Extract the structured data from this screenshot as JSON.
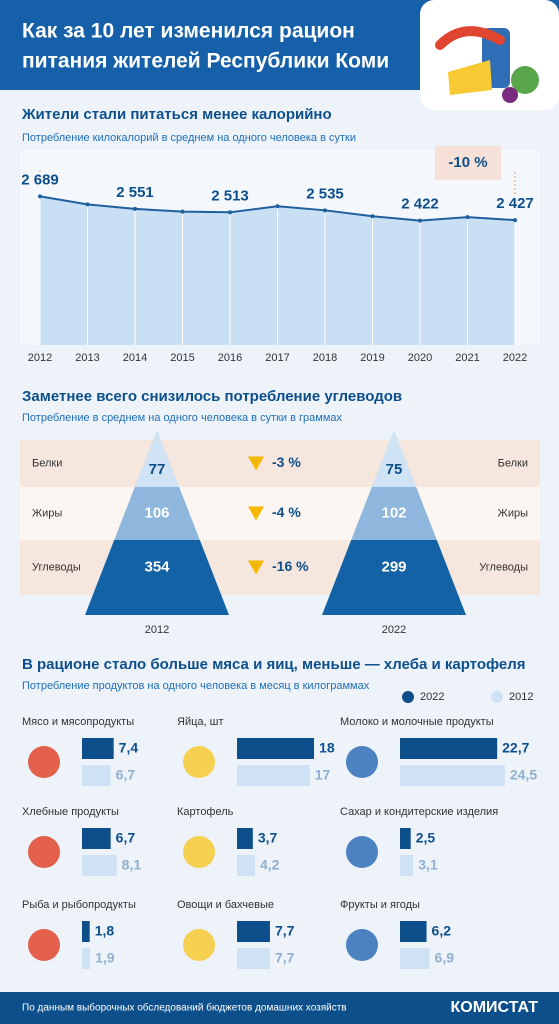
{
  "header": {
    "title_line1": "Как за 10 лет изменился рацион",
    "title_line2": "питания жителей Республики Коми"
  },
  "chart_data": [
    {
      "type": "line",
      "title": "Жители стали питаться менее калорийно",
      "subtitle": "Потребление килокалорий в среднем на одного человека в сутки",
      "annotation": "-10 %",
      "categories": [
        "2012",
        "2013",
        "2014",
        "2015",
        "2016",
        "2017",
        "2018",
        "2019",
        "2020",
        "2021",
        "2022"
      ],
      "values": [
        2689,
        2600,
        2551,
        2520,
        2513,
        2580,
        2535,
        2470,
        2422,
        2460,
        2427
      ],
      "value_labels": [
        "2 689",
        null,
        "2 551",
        null,
        "2 513",
        null,
        "2 535",
        null,
        "2 422",
        null,
        "2 427"
      ],
      "ylim": [
        1050,
        3200
      ],
      "color": "#1f5f9e"
    },
    {
      "type": "pyramid",
      "title": "Заметнее всего снизилось потребление углеводов",
      "subtitle": "Потребление  в среднем на одного человека в сутки в граммах",
      "categories": [
        "Белки",
        "Жиры",
        "Углеводы"
      ],
      "series": [
        {
          "name": "2012",
          "values": [
            77,
            106,
            354
          ]
        },
        {
          "name": "2022",
          "values": [
            75,
            102,
            299
          ]
        }
      ],
      "changes": [
        "-3 %",
        "-4 %",
        "-16 %"
      ]
    },
    {
      "type": "paired-bar",
      "title": "В рационе стало  больше мяса и яиц, меньше — хлеба и картофеля",
      "subtitle": "Потребление продуктов на одного человека в месяц в килограммах",
      "categories": [
        "Мясо и мясопродукты",
        "Яйца, шт",
        "Молоко и молочные продукты",
        "Хлебные продукты",
        "Картофель",
        "Сахар и кондитерские изделия",
        "Рыба и рыбопродукты",
        "Овощи и бахчевые",
        "Фрукты и ягоды"
      ],
      "series": [
        {
          "name": "2022",
          "color": "#0d4f8b",
          "values": [
            7.4,
            18,
            22.7,
            6.7,
            3.7,
            2.5,
            1.8,
            7.7,
            6.2
          ],
          "value_labels": [
            "7,4",
            "18",
            "22,7",
            "6,7",
            "3,7",
            "2,5",
            "1,8",
            "7,7",
            "6,2"
          ]
        },
        {
          "name": "2012",
          "color": "#cfe2f5",
          "values": [
            6.7,
            17,
            24.5,
            8.1,
            4.2,
            3.1,
            1.9,
            7.7,
            6.9
          ],
          "value_labels": [
            "6,7",
            "17",
            "24,5",
            "8,1",
            "4,2",
            "3,1",
            "1,9",
            "7,7",
            "6,9"
          ]
        }
      ],
      "xlim": [
        0,
        25
      ]
    }
  ],
  "footer": {
    "source": "По данным выборочных обследований бюджетов домашних хозяйств",
    "brand": "КОМИСТАТ"
  }
}
